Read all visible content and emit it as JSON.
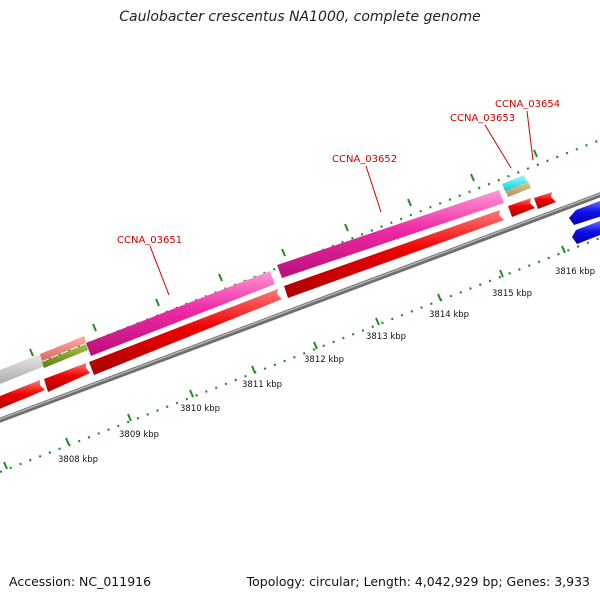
{
  "title": "Caulobacter crescentus NA1000, complete genome",
  "footer": {
    "accession": "Accession: NC_011916",
    "topology": "Topology: circular; Length: 4,042,929 bp; Genes: 3,933"
  },
  "colors": {
    "cds": "#ee0000",
    "gene": "#e8189a",
    "backbone": "#777777",
    "tick_minor": "#228b22",
    "reverse_strand": "#1010dd",
    "gene_label": "#cc0000"
  },
  "kbp_ticks": [
    "3808 kbp",
    "3809 kbp",
    "3810 kbp",
    "3811 kbp",
    "3812 kbp",
    "3813 kbp",
    "3814 kbp",
    "3815 kbp",
    "3816 kbp"
  ],
  "gene_labels": [
    "CCNA_03651",
    "CCNA_03652",
    "CCNA_03653",
    "CCNA_03654"
  ]
}
